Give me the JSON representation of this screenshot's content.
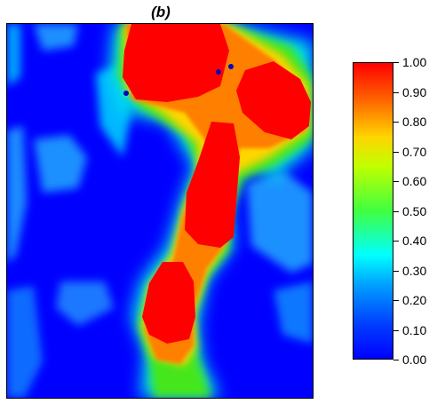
{
  "chart_data": {
    "type": "heatmap",
    "title": "(b)",
    "colormap": "jet",
    "colorbar": {
      "range": [
        0.0,
        1.0
      ],
      "ticks": [
        "0.00",
        "0.10",
        "0.20",
        "0.30",
        "0.40",
        "0.50",
        "0.60",
        "0.70",
        "0.80",
        "0.90",
        "1.00"
      ],
      "placement": "right"
    },
    "background_value": 0.0,
    "features": [
      {
        "label": "high region top",
        "value": 1.0
      },
      {
        "label": "high region upper right",
        "value": 1.0
      },
      {
        "label": "high region middle",
        "value": 1.0
      },
      {
        "label": "high region bottom",
        "value": 1.0
      },
      {
        "label": "connecting band",
        "value": 0.62
      },
      {
        "label": "left diffuse patches",
        "value": 0.2
      }
    ],
    "axes_visible": false,
    "grid": false
  }
}
